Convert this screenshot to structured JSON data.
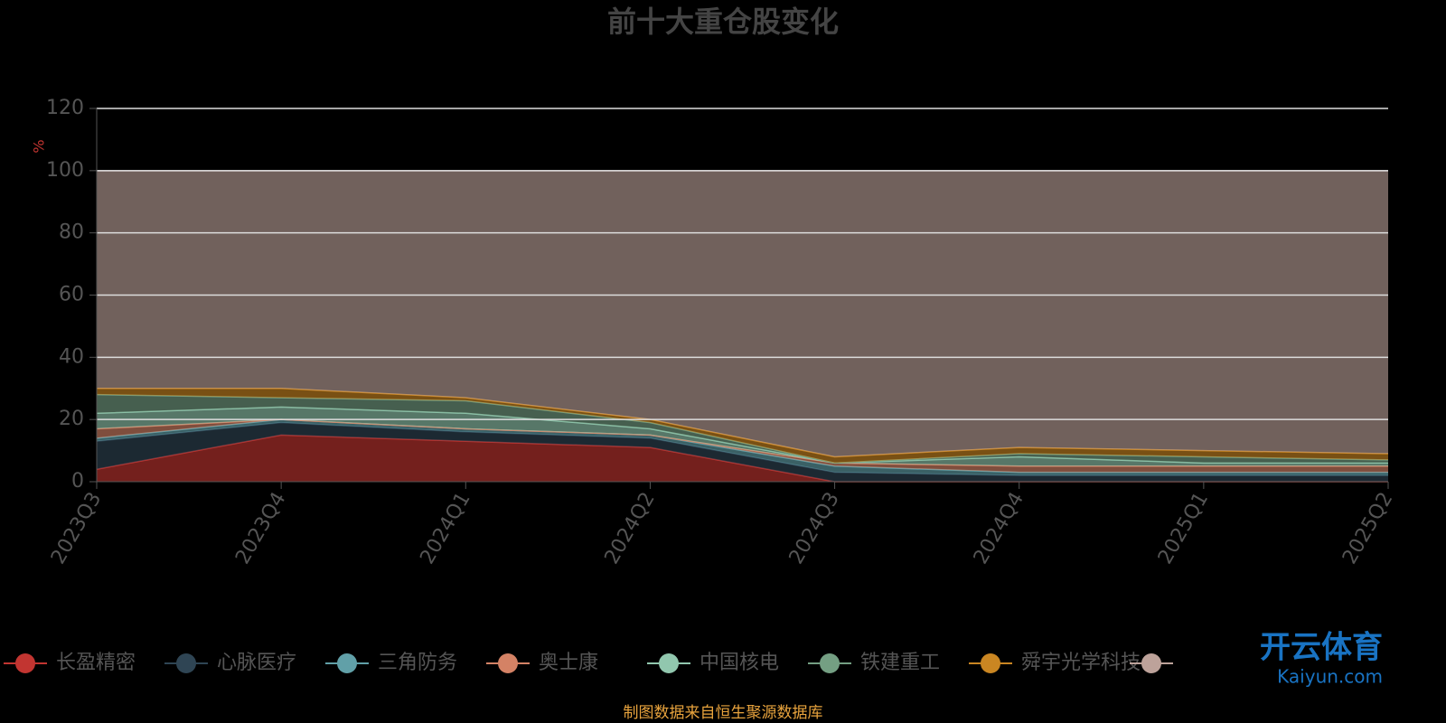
{
  "chart_data": {
    "type": "stacked-area",
    "title": "前十大重仓股变化",
    "y_label": "%",
    "source": "制图数据来自恒生聚源数据库",
    "watermark": [
      "开云体育",
      "Kaiyun.com"
    ],
    "categories": [
      "2023Q3",
      "2023Q4",
      "2024Q1",
      "2024Q2",
      "2024Q3",
      "2024Q4",
      "2025Q1",
      "2025Q2"
    ],
    "ylim": [
      0,
      120
    ],
    "yticks": [
      0,
      20,
      40,
      60,
      80,
      100,
      120
    ],
    "grid": true,
    "series": [
      {
        "name": "长盈精密",
        "color": "#c23531",
        "values": [
          4,
          15,
          13,
          11,
          0,
          0,
          0,
          0
        ]
      },
      {
        "name": "心脉医疗",
        "color": "#2f4554",
        "values": [
          9,
          4,
          3,
          3,
          3,
          2,
          2,
          2
        ]
      },
      {
        "name": "三角防务",
        "color": "#61a0a8",
        "values": [
          1,
          1,
          1,
          1,
          2,
          1,
          1,
          1
        ]
      },
      {
        "name": "奥士康",
        "color": "#d48265",
        "values": [
          3,
          0,
          0,
          0,
          1,
          2,
          2,
          2
        ]
      },
      {
        "name": "中国核电",
        "color": "#91c7ae",
        "values": [
          5,
          4,
          5,
          2,
          0,
          3,
          1,
          1
        ]
      },
      {
        "name": "铁建重工",
        "color": "#749f83",
        "values": [
          6,
          3,
          4,
          2,
          0,
          1,
          2,
          1
        ]
      },
      {
        "name": "舜宇光学科技",
        "color": "#ca8622",
        "values": [
          2,
          3,
          1,
          1,
          2,
          2,
          2,
          2
        ]
      },
      {
        "color": "#bda29a",
        "values": [
          70,
          70,
          73,
          80,
          92,
          89,
          90,
          91
        ]
      }
    ]
  }
}
